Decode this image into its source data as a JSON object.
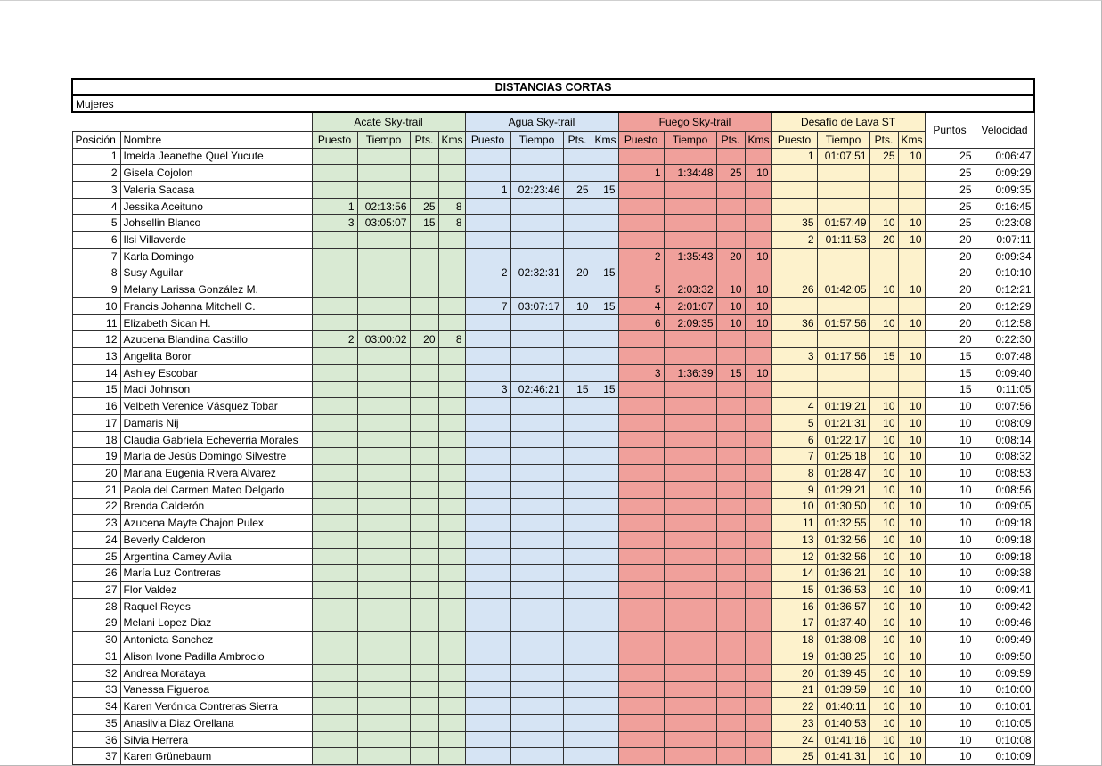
{
  "sheet": {
    "title": "DISTANCIAS CORTAS",
    "category": "Mujeres",
    "base_headers": [
      "Posición",
      "Nombre"
    ],
    "sub_headers": [
      "Puesto",
      "Tiempo",
      "Pts.",
      "Kms"
    ],
    "tail_headers": [
      "Puntos",
      "Velocidad"
    ],
    "race_groups": [
      {
        "name": "Acate Sky-trail",
        "color": "#d9ead3"
      },
      {
        "name": "Agua Sky-trail",
        "color": "#d6e4f4"
      },
      {
        "name": "Fuego Sky-trail",
        "color": "#f0a09b"
      },
      {
        "name": "Desafío de Lava ST",
        "color": "#fdf2cc"
      }
    ],
    "border_color": "#303030",
    "rows": [
      {
        "pos": "1",
        "name": "Imelda Jeanethe Quel Yucute",
        "acate": [
          "",
          "",
          "",
          ""
        ],
        "agua": [
          "",
          "",
          "",
          ""
        ],
        "fuego": [
          "",
          "",
          "",
          ""
        ],
        "lava": [
          "1",
          "01:07:51",
          "25",
          "10"
        ],
        "puntos": "25",
        "velocidad": "0:06:47"
      },
      {
        "pos": "2",
        "name": "Gisela Cojolon",
        "acate": [
          "",
          "",
          "",
          ""
        ],
        "agua": [
          "",
          "",
          "",
          ""
        ],
        "fuego": [
          "1",
          "1:34:48",
          "25",
          "10"
        ],
        "lava": [
          "",
          "",
          "",
          ""
        ],
        "puntos": "25",
        "velocidad": "0:09:29"
      },
      {
        "pos": "3",
        "name": "Valeria Sacasa",
        "acate": [
          "",
          "",
          "",
          ""
        ],
        "agua": [
          "1",
          "02:23:46",
          "25",
          "15"
        ],
        "fuego": [
          "",
          "",
          "",
          ""
        ],
        "lava": [
          "",
          "",
          "",
          ""
        ],
        "puntos": "25",
        "velocidad": "0:09:35"
      },
      {
        "pos": "4",
        "name": "Jessika Aceituno",
        "acate": [
          "1",
          "02:13:56",
          "25",
          "8"
        ],
        "agua": [
          "",
          "",
          "",
          ""
        ],
        "fuego": [
          "",
          "",
          "",
          ""
        ],
        "lava": [
          "",
          "",
          "",
          ""
        ],
        "puntos": "25",
        "velocidad": "0:16:45"
      },
      {
        "pos": "5",
        "name": "Johsellin Blanco",
        "acate": [
          "3",
          "03:05:07",
          "15",
          "8"
        ],
        "agua": [
          "",
          "",
          "",
          ""
        ],
        "fuego": [
          "",
          "",
          "",
          ""
        ],
        "lava": [
          "35",
          "01:57:49",
          "10",
          "10"
        ],
        "puntos": "25",
        "velocidad": "0:23:08"
      },
      {
        "pos": "6",
        "name": "Ilsi Villaverde",
        "acate": [
          "",
          "",
          "",
          ""
        ],
        "agua": [
          "",
          "",
          "",
          ""
        ],
        "fuego": [
          "",
          "",
          "",
          ""
        ],
        "lava": [
          "2",
          "01:11:53",
          "20",
          "10"
        ],
        "puntos": "20",
        "velocidad": "0:07:11"
      },
      {
        "pos": "7",
        "name": "Karla Domingo",
        "acate": [
          "",
          "",
          "",
          ""
        ],
        "agua": [
          "",
          "",
          "",
          ""
        ],
        "fuego": [
          "2",
          "1:35:43",
          "20",
          "10"
        ],
        "lava": [
          "",
          "",
          "",
          ""
        ],
        "puntos": "20",
        "velocidad": "0:09:34"
      },
      {
        "pos": "8",
        "name": "Susy Aguilar",
        "acate": [
          "",
          "",
          "",
          ""
        ],
        "agua": [
          "2",
          "02:32:31",
          "20",
          "15"
        ],
        "fuego": [
          "",
          "",
          "",
          ""
        ],
        "lava": [
          "",
          "",
          "",
          ""
        ],
        "puntos": "20",
        "velocidad": "0:10:10"
      },
      {
        "pos": "9",
        "name": "Melany Larissa González M.",
        "acate": [
          "",
          "",
          "",
          ""
        ],
        "agua": [
          "",
          "",
          "",
          ""
        ],
        "fuego": [
          "5",
          "2:03:32",
          "10",
          "10"
        ],
        "lava": [
          "26",
          "01:42:05",
          "10",
          "10"
        ],
        "puntos": "20",
        "velocidad": "0:12:21"
      },
      {
        "pos": "10",
        "name": "Francis Johanna Mitchell C.",
        "acate": [
          "",
          "",
          "",
          ""
        ],
        "agua": [
          "7",
          "03:07:17",
          "10",
          "15"
        ],
        "fuego": [
          "4",
          "2:01:07",
          "10",
          "10"
        ],
        "lava": [
          "",
          "",
          "",
          ""
        ],
        "puntos": "20",
        "velocidad": "0:12:29"
      },
      {
        "pos": "11",
        "name": "Elizabeth Sican H.",
        "acate": [
          "",
          "",
          "",
          ""
        ],
        "agua": [
          "",
          "",
          "",
          ""
        ],
        "fuego": [
          "6",
          "2:09:35",
          "10",
          "10"
        ],
        "lava": [
          "36",
          "01:57:56",
          "10",
          "10"
        ],
        "puntos": "20",
        "velocidad": "0:12:58"
      },
      {
        "pos": "12",
        "name": "Azucena Blandina Castillo",
        "acate": [
          "2",
          "03:00:02",
          "20",
          "8"
        ],
        "agua": [
          "",
          "",
          "",
          ""
        ],
        "fuego": [
          "",
          "",
          "",
          ""
        ],
        "lava": [
          "",
          "",
          "",
          ""
        ],
        "puntos": "20",
        "velocidad": "0:22:30"
      },
      {
        "pos": "13",
        "name": "Angelita Boror",
        "acate": [
          "",
          "",
          "",
          ""
        ],
        "agua": [
          "",
          "",
          "",
          ""
        ],
        "fuego": [
          "",
          "",
          "",
          ""
        ],
        "lava": [
          "3",
          "01:17:56",
          "15",
          "10"
        ],
        "puntos": "15",
        "velocidad": "0:07:48"
      },
      {
        "pos": "14",
        "name": "Ashley Escobar",
        "acate": [
          "",
          "",
          "",
          ""
        ],
        "agua": [
          "",
          "",
          "",
          ""
        ],
        "fuego": [
          "3",
          "1:36:39",
          "15",
          "10"
        ],
        "lava": [
          "",
          "",
          "",
          ""
        ],
        "puntos": "15",
        "velocidad": "0:09:40"
      },
      {
        "pos": "15",
        "name": "Madi Johnson",
        "acate": [
          "",
          "",
          "",
          ""
        ],
        "agua": [
          "3",
          "02:46:21",
          "15",
          "15"
        ],
        "fuego": [
          "",
          "",
          "",
          ""
        ],
        "lava": [
          "",
          "",
          "",
          ""
        ],
        "puntos": "15",
        "velocidad": "0:11:05"
      },
      {
        "pos": "16",
        "name": "Velbeth Verenice Vásquez Tobar",
        "acate": [
          "",
          "",
          "",
          ""
        ],
        "agua": [
          "",
          "",
          "",
          ""
        ],
        "fuego": [
          "",
          "",
          "",
          ""
        ],
        "lava": [
          "4",
          "01:19:21",
          "10",
          "10"
        ],
        "puntos": "10",
        "velocidad": "0:07:56"
      },
      {
        "pos": "17",
        "name": "Damaris Nij",
        "acate": [
          "",
          "",
          "",
          ""
        ],
        "agua": [
          "",
          "",
          "",
          ""
        ],
        "fuego": [
          "",
          "",
          "",
          ""
        ],
        "lava": [
          "5",
          "01:21:31",
          "10",
          "10"
        ],
        "puntos": "10",
        "velocidad": "0:08:09"
      },
      {
        "pos": "18",
        "name": "Claudia Gabriela Echeverria Morales",
        "acate": [
          "",
          "",
          "",
          ""
        ],
        "agua": [
          "",
          "",
          "",
          ""
        ],
        "fuego": [
          "",
          "",
          "",
          ""
        ],
        "lava": [
          "6",
          "01:22:17",
          "10",
          "10"
        ],
        "puntos": "10",
        "velocidad": "0:08:14"
      },
      {
        "pos": "19",
        "name": "María de Jesús Domingo Silvestre",
        "acate": [
          "",
          "",
          "",
          ""
        ],
        "agua": [
          "",
          "",
          "",
          ""
        ],
        "fuego": [
          "",
          "",
          "",
          ""
        ],
        "lava": [
          "7",
          "01:25:18",
          "10",
          "10"
        ],
        "puntos": "10",
        "velocidad": "0:08:32"
      },
      {
        "pos": "20",
        "name": "Mariana Eugenia Rivera Alvarez",
        "acate": [
          "",
          "",
          "",
          ""
        ],
        "agua": [
          "",
          "",
          "",
          ""
        ],
        "fuego": [
          "",
          "",
          "",
          ""
        ],
        "lava": [
          "8",
          "01:28:47",
          "10",
          "10"
        ],
        "puntos": "10",
        "velocidad": "0:08:53"
      },
      {
        "pos": "21",
        "name": "Paola del Carmen Mateo Delgado",
        "acate": [
          "",
          "",
          "",
          ""
        ],
        "agua": [
          "",
          "",
          "",
          ""
        ],
        "fuego": [
          "",
          "",
          "",
          ""
        ],
        "lava": [
          "9",
          "01:29:21",
          "10",
          "10"
        ],
        "puntos": "10",
        "velocidad": "0:08:56"
      },
      {
        "pos": "22",
        "name": "Brenda Calderón",
        "acate": [
          "",
          "",
          "",
          ""
        ],
        "agua": [
          "",
          "",
          "",
          ""
        ],
        "fuego": [
          "",
          "",
          "",
          ""
        ],
        "lava": [
          "10",
          "01:30:50",
          "10",
          "10"
        ],
        "puntos": "10",
        "velocidad": "0:09:05"
      },
      {
        "pos": "23",
        "name": "Azucena Mayte Chajon Pulex",
        "acate": [
          "",
          "",
          "",
          ""
        ],
        "agua": [
          "",
          "",
          "",
          ""
        ],
        "fuego": [
          "",
          "",
          "",
          ""
        ],
        "lava": [
          "11",
          "01:32:55",
          "10",
          "10"
        ],
        "puntos": "10",
        "velocidad": "0:09:18"
      },
      {
        "pos": "24",
        "name": "Beverly Calderon",
        "acate": [
          "",
          "",
          "",
          ""
        ],
        "agua": [
          "",
          "",
          "",
          ""
        ],
        "fuego": [
          "",
          "",
          "",
          ""
        ],
        "lava": [
          "13",
          "01:32:56",
          "10",
          "10"
        ],
        "puntos": "10",
        "velocidad": "0:09:18"
      },
      {
        "pos": "25",
        "name": "Argentina Camey Avila",
        "acate": [
          "",
          "",
          "",
          ""
        ],
        "agua": [
          "",
          "",
          "",
          ""
        ],
        "fuego": [
          "",
          "",
          "",
          ""
        ],
        "lava": [
          "12",
          "01:32:56",
          "10",
          "10"
        ],
        "puntos": "10",
        "velocidad": "0:09:18"
      },
      {
        "pos": "26",
        "name": "María Luz Contreras",
        "acate": [
          "",
          "",
          "",
          ""
        ],
        "agua": [
          "",
          "",
          "",
          ""
        ],
        "fuego": [
          "",
          "",
          "",
          ""
        ],
        "lava": [
          "14",
          "01:36:21",
          "10",
          "10"
        ],
        "puntos": "10",
        "velocidad": "0:09:38"
      },
      {
        "pos": "27",
        "name": "Flor Valdez",
        "acate": [
          "",
          "",
          "",
          ""
        ],
        "agua": [
          "",
          "",
          "",
          ""
        ],
        "fuego": [
          "",
          "",
          "",
          ""
        ],
        "lava": [
          "15",
          "01:36:53",
          "10",
          "10"
        ],
        "puntos": "10",
        "velocidad": "0:09:41"
      },
      {
        "pos": "28",
        "name": "Raquel Reyes",
        "acate": [
          "",
          "",
          "",
          ""
        ],
        "agua": [
          "",
          "",
          "",
          ""
        ],
        "fuego": [
          "",
          "",
          "",
          ""
        ],
        "lava": [
          "16",
          "01:36:57",
          "10",
          "10"
        ],
        "puntos": "10",
        "velocidad": "0:09:42"
      },
      {
        "pos": "29",
        "name": "Melani Lopez Diaz",
        "acate": [
          "",
          "",
          "",
          ""
        ],
        "agua": [
          "",
          "",
          "",
          ""
        ],
        "fuego": [
          "",
          "",
          "",
          ""
        ],
        "lava": [
          "17",
          "01:37:40",
          "10",
          "10"
        ],
        "puntos": "10",
        "velocidad": "0:09:46"
      },
      {
        "pos": "30",
        "name": "Antonieta Sanchez",
        "acate": [
          "",
          "",
          "",
          ""
        ],
        "agua": [
          "",
          "",
          "",
          ""
        ],
        "fuego": [
          "",
          "",
          "",
          ""
        ],
        "lava": [
          "18",
          "01:38:08",
          "10",
          "10"
        ],
        "puntos": "10",
        "velocidad": "0:09:49"
      },
      {
        "pos": "31",
        "name": "Alison Ivone Padilla Ambrocio",
        "acate": [
          "",
          "",
          "",
          ""
        ],
        "agua": [
          "",
          "",
          "",
          ""
        ],
        "fuego": [
          "",
          "",
          "",
          ""
        ],
        "lava": [
          "19",
          "01:38:25",
          "10",
          "10"
        ],
        "puntos": "10",
        "velocidad": "0:09:50"
      },
      {
        "pos": "32",
        "name": "Andrea Morataya",
        "acate": [
          "",
          "",
          "",
          ""
        ],
        "agua": [
          "",
          "",
          "",
          ""
        ],
        "fuego": [
          "",
          "",
          "",
          ""
        ],
        "lava": [
          "20",
          "01:39:45",
          "10",
          "10"
        ],
        "puntos": "10",
        "velocidad": "0:09:59"
      },
      {
        "pos": "33",
        "name": "Vanessa Figueroa",
        "acate": [
          "",
          "",
          "",
          ""
        ],
        "agua": [
          "",
          "",
          "",
          ""
        ],
        "fuego": [
          "",
          "",
          "",
          ""
        ],
        "lava": [
          "21",
          "01:39:59",
          "10",
          "10"
        ],
        "puntos": "10",
        "velocidad": "0:10:00"
      },
      {
        "pos": "34",
        "name": "Karen Verónica Contreras Sierra",
        "acate": [
          "",
          "",
          "",
          ""
        ],
        "agua": [
          "",
          "",
          "",
          ""
        ],
        "fuego": [
          "",
          "",
          "",
          ""
        ],
        "lava": [
          "22",
          "01:40:11",
          "10",
          "10"
        ],
        "puntos": "10",
        "velocidad": "0:10:01"
      },
      {
        "pos": "35",
        "name": "Anasilvia Diaz Orellana",
        "acate": [
          "",
          "",
          "",
          ""
        ],
        "agua": [
          "",
          "",
          "",
          ""
        ],
        "fuego": [
          "",
          "",
          "",
          ""
        ],
        "lava": [
          "23",
          "01:40:53",
          "10",
          "10"
        ],
        "puntos": "10",
        "velocidad": "0:10:05"
      },
      {
        "pos": "36",
        "name": "Silvia Herrera",
        "acate": [
          "",
          "",
          "",
          ""
        ],
        "agua": [
          "",
          "",
          "",
          ""
        ],
        "fuego": [
          "",
          "",
          "",
          ""
        ],
        "lava": [
          "24",
          "01:41:16",
          "10",
          "10"
        ],
        "puntos": "10",
        "velocidad": "0:10:08"
      },
      {
        "pos": "37",
        "name": "Karen Grünebaum",
        "acate": [
          "",
          "",
          "",
          ""
        ],
        "agua": [
          "",
          "",
          "",
          ""
        ],
        "fuego": [
          "",
          "",
          "",
          ""
        ],
        "lava": [
          "25",
          "01:41:31",
          "10",
          "10"
        ],
        "puntos": "10",
        "velocidad": "0:10:09"
      }
    ]
  }
}
